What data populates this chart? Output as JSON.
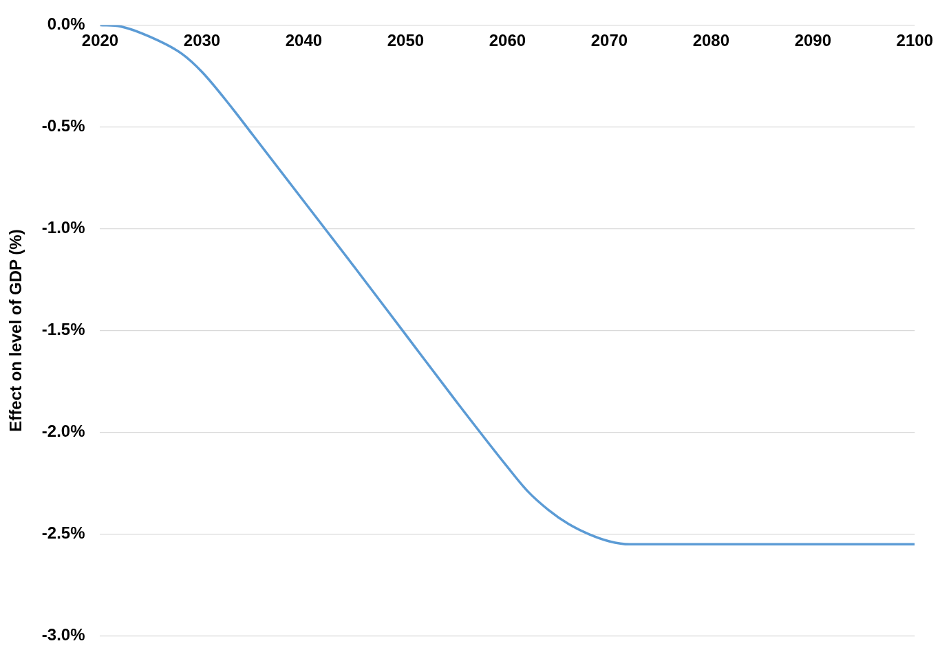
{
  "chart_data": {
    "type": "line",
    "ylabel": "Effect on level of GDP (%)",
    "x": [
      2020,
      2022,
      2025,
      2028,
      2030,
      2033,
      2035,
      2040,
      2045,
      2050,
      2055,
      2060,
      2062,
      2064,
      2066,
      2068,
      2070,
      2072,
      2080,
      2090,
      2100
    ],
    "series": [
      {
        "color": "#5b9bd5",
        "values": [
          0,
          -0.007,
          -0.06,
          -0.14,
          -0.23,
          -0.41,
          -0.54,
          -0.865,
          -1.19,
          -1.52,
          -1.85,
          -2.17,
          -2.29,
          -2.38,
          -2.45,
          -2.5,
          -2.535,
          -2.55,
          -2.55,
          -2.55,
          -2.55
        ]
      }
    ],
    "xlim": [
      2020,
      2100
    ],
    "xticks": [
      2020,
      2030,
      2040,
      2050,
      2060,
      2070,
      2080,
      2090,
      2100
    ],
    "ylim": [
      -3,
      0
    ],
    "yticks": [
      {
        "value": 0,
        "label": "0.0%"
      },
      {
        "value": -0.5,
        "label": "-0.5%"
      },
      {
        "value": -1,
        "label": "-1.0%"
      },
      {
        "value": -1.5,
        "label": "-1.5%"
      },
      {
        "value": -2,
        "label": "-2.0%"
      },
      {
        "value": -2.5,
        "label": "-2.5%"
      },
      {
        "value": -3,
        "label": "-3.0%"
      }
    ],
    "grid": "y",
    "legend": false,
    "marker": "none",
    "line_style": "solid"
  }
}
